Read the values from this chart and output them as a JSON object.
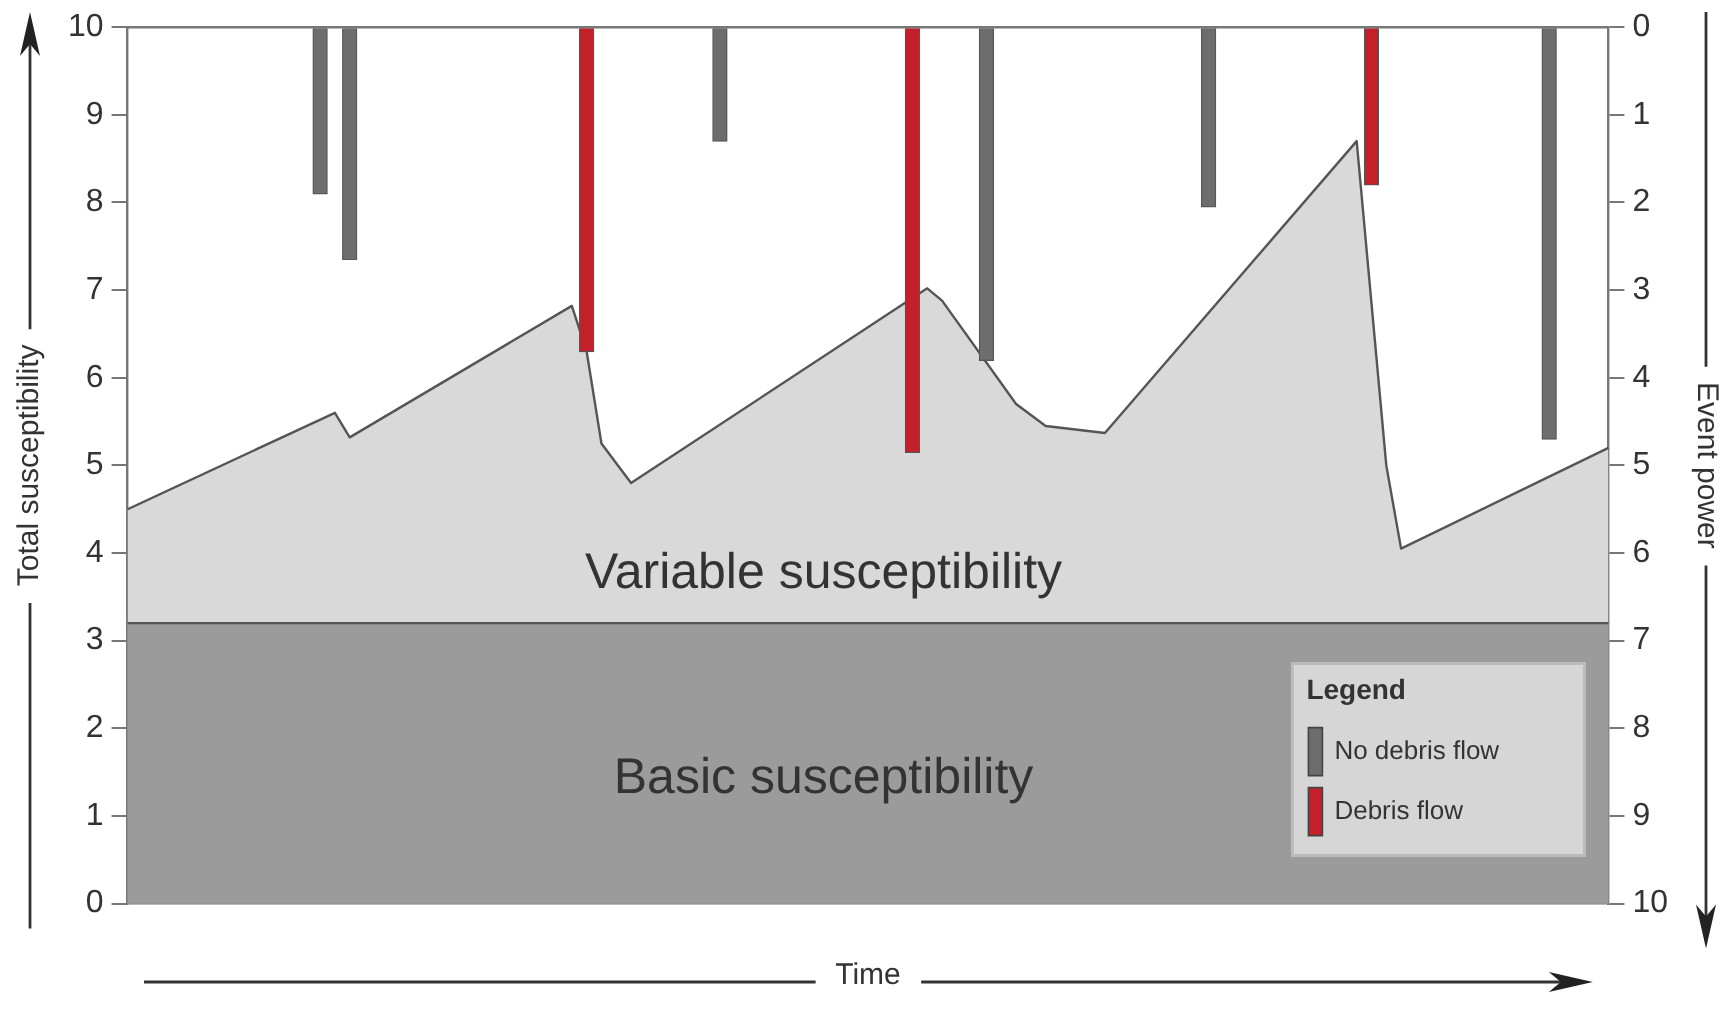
{
  "chart_data": {
    "type": "area",
    "xlabel": "Time",
    "ylabel": "Total susceptibility",
    "y2label": "Event power",
    "legend_title": "Legend",
    "legend": "bottom right",
    "grid": false,
    "categories": [
      null,
      null,
      null,
      null,
      null,
      null,
      null,
      null,
      null,
      null,
      null,
      null,
      null,
      null,
      null,
      null,
      null,
      null,
      null,
      null,
      null,
      null,
      null,
      null,
      null,
      null,
      null,
      null,
      null,
      null,
      null,
      null,
      null,
      null,
      null,
      null,
      null,
      null,
      null,
      null,
      null,
      null,
      null,
      null,
      null,
      null,
      null,
      null,
      null,
      null,
      null,
      null,
      null,
      null,
      null,
      null,
      null,
      null,
      null,
      null,
      null,
      null,
      null,
      null,
      null,
      null,
      null,
      null,
      null,
      null,
      null,
      null,
      null,
      null,
      null,
      null,
      null,
      null,
      null,
      null,
      null,
      null,
      null,
      null,
      null,
      null,
      null,
      null,
      null,
      null,
      null,
      null,
      null,
      null,
      null,
      null,
      null,
      null,
      null,
      null,
      null
    ],
    "ylim": [
      0,
      10
    ],
    "yticks": [
      0,
      1,
      2,
      3,
      4,
      5,
      6,
      7,
      8,
      9,
      10
    ],
    "y2lim": [
      10,
      0
    ],
    "y2ticks": [
      0,
      1,
      2,
      3,
      4,
      5,
      6,
      7,
      8,
      9,
      10
    ],
    "series": [
      {
        "name": "Variable susceptibility",
        "color": "#d9d9d9",
        "values": [
          4.5,
          null,
          null,
          null,
          null,
          null,
          null,
          null,
          null,
          null,
          null,
          null,
          null,
          null,
          5.6,
          5.32,
          null,
          null,
          null,
          null,
          null,
          null,
          null,
          null,
          null,
          null,
          null,
          null,
          null,
          null,
          6.82,
          6.3,
          5.25,
          null,
          4.8,
          null,
          null,
          null,
          null,
          null,
          null,
          null,
          null,
          null,
          null,
          null,
          null,
          null,
          null,
          null,
          null,
          null,
          null,
          null,
          7.02,
          6.88,
          null,
          null,
          null,
          null,
          5.7,
          null,
          5.45,
          null,
          null,
          null,
          5.37,
          null,
          null,
          null,
          null,
          null,
          null,
          null,
          null,
          null,
          null,
          null,
          null,
          null,
          null,
          null,
          null,
          8.7,
          null,
          5.0,
          4.05,
          null,
          null,
          null,
          null,
          null,
          null,
          null,
          null,
          null,
          null,
          null,
          null,
          null,
          5.2
        ]
      },
      {
        "name": "Basic susceptibility",
        "color": "#9b9b9b",
        "values": [
          3.2,
          3.2,
          3.2,
          3.2,
          3.2,
          3.2,
          3.2,
          3.2,
          3.2,
          3.2,
          3.2,
          3.2,
          3.2,
          3.2,
          3.2,
          3.2,
          3.2,
          3.2,
          3.2,
          3.2,
          3.2,
          3.2,
          3.2,
          3.2,
          3.2,
          3.2,
          3.2,
          3.2,
          3.2,
          3.2,
          3.2,
          3.2,
          3.2,
          3.2,
          3.2,
          3.2,
          3.2,
          3.2,
          3.2,
          3.2,
          3.2,
          3.2,
          3.2,
          3.2,
          3.2,
          3.2,
          3.2,
          3.2,
          3.2,
          3.2,
          3.2,
          3.2,
          3.2,
          3.2,
          3.2,
          3.2,
          3.2,
          3.2,
          3.2,
          3.2,
          3.2,
          3.2,
          3.2,
          3.2,
          3.2,
          3.2,
          3.2,
          3.2,
          3.2,
          3.2,
          3.2,
          3.2,
          3.2,
          3.2,
          3.2,
          3.2,
          3.2,
          3.2,
          3.2,
          3.2,
          3.2,
          3.2,
          3.2,
          3.2,
          3.2,
          3.2,
          3.2,
          3.2,
          3.2,
          3.2,
          3.2,
          3.2,
          3.2,
          3.2,
          3.2,
          3.2,
          3.2,
          3.2,
          3.2,
          3.2,
          3.2
        ]
      },
      {
        "name": "No debris flow",
        "type": "bar",
        "axis": "y2",
        "color": "#6d6d6d",
        "values": [
          null,
          null,
          null,
          null,
          null,
          null,
          null,
          null,
          null,
          null,
          null,
          null,
          null,
          1.9,
          null,
          2.65,
          null,
          null,
          null,
          null,
          null,
          null,
          null,
          null,
          null,
          null,
          null,
          null,
          null,
          null,
          null,
          null,
          null,
          null,
          null,
          null,
          null,
          null,
          null,
          null,
          1.3,
          null,
          null,
          null,
          null,
          null,
          null,
          null,
          null,
          null,
          null,
          null,
          null,
          null,
          null,
          null,
          null,
          null,
          3.8,
          null,
          null,
          null,
          null,
          null,
          null,
          null,
          null,
          null,
          null,
          null,
          null,
          null,
          null,
          2.05,
          null,
          null,
          null,
          null,
          null,
          null,
          null,
          null,
          null,
          null,
          null,
          null,
          null,
          null,
          null,
          null,
          null,
          null,
          null,
          null,
          null,
          null,
          4.7,
          null,
          null,
          null,
          null
        ]
      },
      {
        "name": "Debris flow",
        "type": "bar",
        "axis": "y2",
        "color": "#c4202b",
        "values": [
          null,
          null,
          null,
          null,
          null,
          null,
          null,
          null,
          null,
          null,
          null,
          null,
          null,
          null,
          null,
          null,
          null,
          null,
          null,
          null,
          null,
          null,
          null,
          null,
          null,
          null,
          null,
          null,
          null,
          null,
          null,
          3.7,
          null,
          null,
          null,
          null,
          null,
          null,
          null,
          null,
          null,
          null,
          null,
          null,
          null,
          null,
          null,
          null,
          null,
          null,
          null,
          null,
          null,
          4.85,
          null,
          null,
          null,
          null,
          null,
          null,
          null,
          null,
          null,
          null,
          null,
          null,
          null,
          null,
          null,
          null,
          null,
          null,
          null,
          null,
          null,
          null,
          null,
          null,
          null,
          null,
          null,
          null,
          null,
          null,
          1.8,
          null,
          null,
          null,
          null,
          null,
          null,
          null,
          null,
          null,
          null,
          null,
          null,
          null,
          null,
          null,
          null
        ]
      }
    ]
  }
}
